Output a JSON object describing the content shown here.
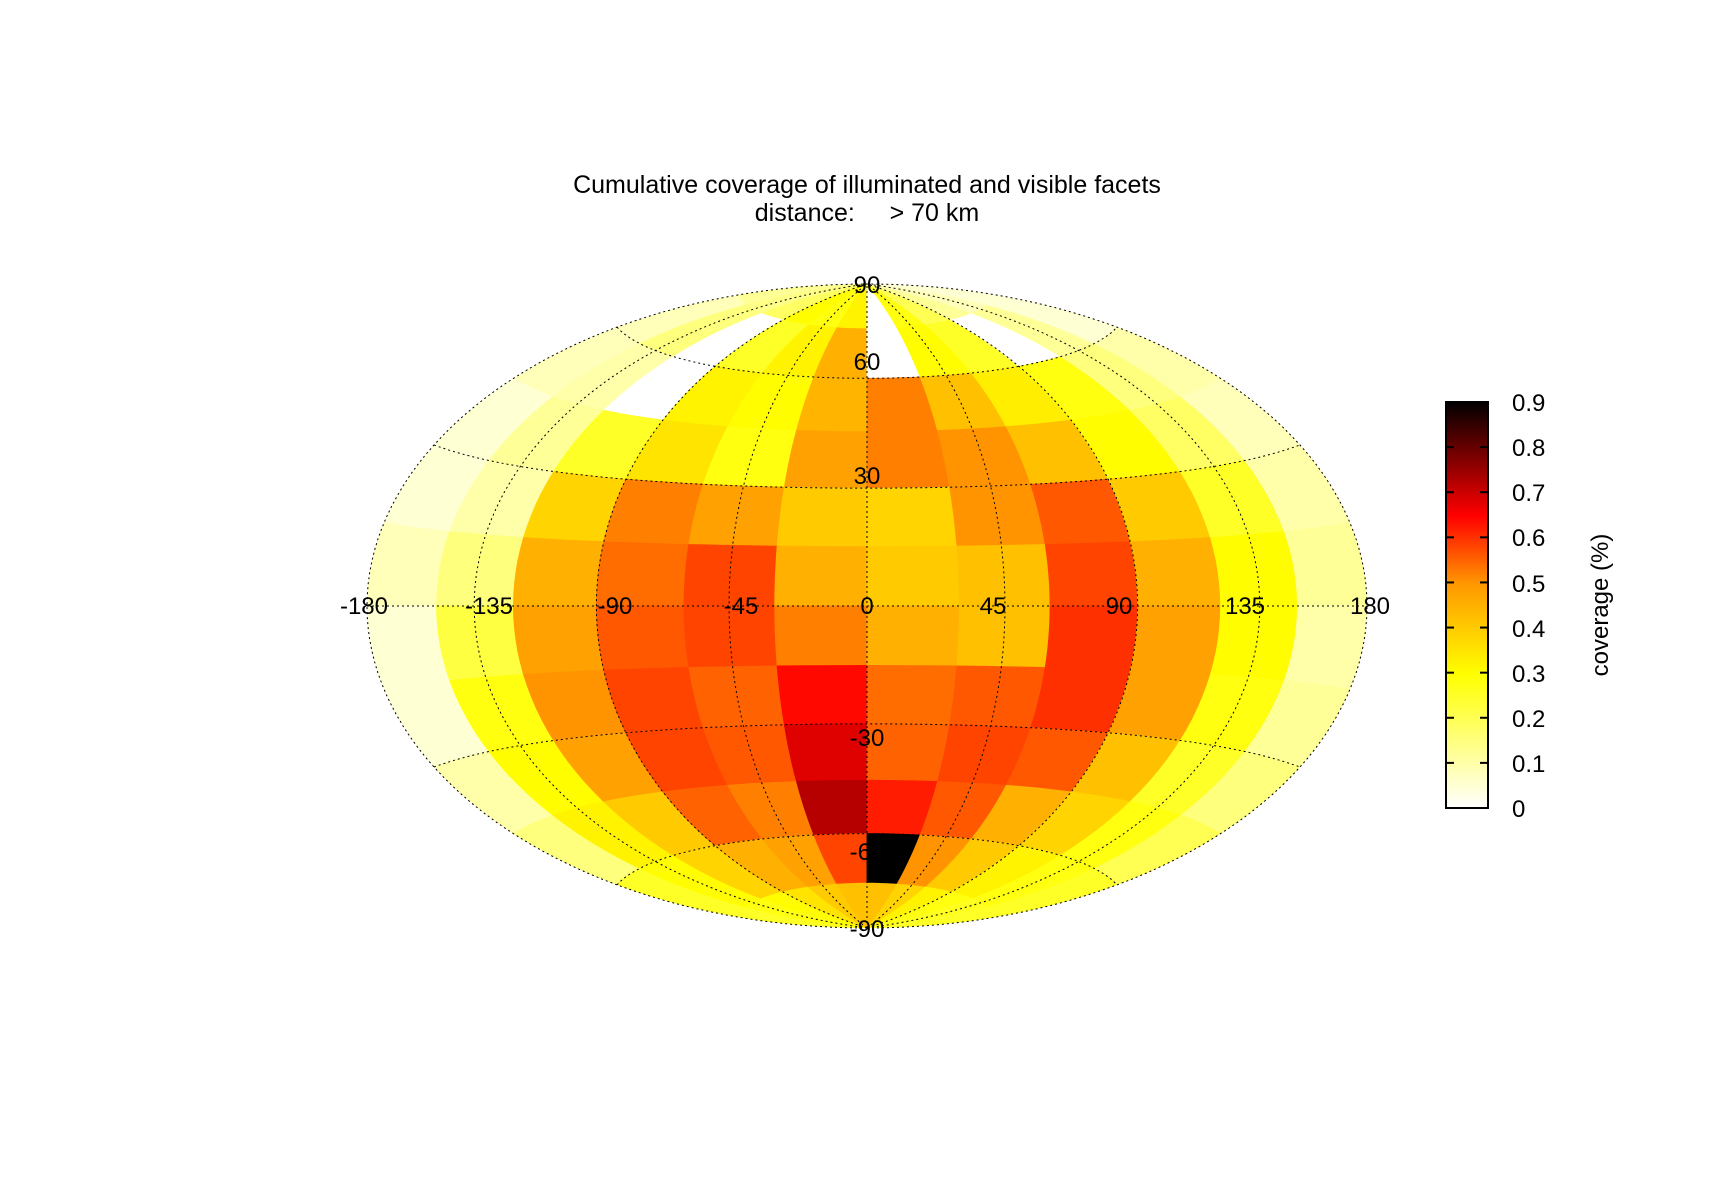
{
  "chart_data": {
    "type": "heatmap",
    "projection": "Hammer-Aitoff (elliptical, longitude/latitude)",
    "title_line1": "Cumulative coverage of illuminated and visible facets",
    "title_line2": "distance:     > 70 km",
    "lon_ticks": [
      "-180",
      "-135",
      "-90",
      "-45",
      "0",
      "45",
      "90",
      "135",
      "180"
    ],
    "lat_ticks": [
      "90",
      "60",
      "30",
      "-30",
      "-60",
      "-90"
    ],
    "grid": true,
    "colorbar": {
      "label": "coverage (%)",
      "range": [
        0,
        0.9
      ],
      "ticks": [
        "0",
        "0.1",
        "0.2",
        "0.3",
        "0.4",
        "0.5",
        "0.6",
        "0.7",
        "0.8",
        "0.9"
      ],
      "colormap": "hot (white → yellow → orange → red → black)",
      "placement": "right"
    },
    "coverage_grid": {
      "lon_bin_centers_deg": [
        -165,
        -135,
        -105,
        -75,
        -45,
        -15,
        15,
        45,
        75,
        105,
        135,
        165
      ],
      "lat_bin_centers_deg": [
        82.5,
        67.5,
        52.5,
        37.5,
        22.5,
        7.5,
        -7.5,
        -22.5,
        -37.5,
        -52.5,
        -67.5,
        -82.5
      ],
      "values": [
        [
          0.12,
          0.14,
          0.18,
          0.3,
          0.28,
          0.32,
          0.0,
          0.28,
          0.2,
          0.12,
          0.08,
          0.05
        ],
        [
          0.08,
          0.15,
          0.0,
          0.25,
          0.32,
          0.45,
          0.0,
          0.3,
          0.25,
          0.0,
          0.12,
          0.05
        ],
        [
          0.08,
          0.1,
          0.0,
          0.32,
          0.3,
          0.44,
          0.52,
          0.42,
          0.33,
          0.28,
          0.15,
          0.1
        ],
        [
          0.05,
          0.12,
          0.25,
          0.35,
          0.28,
          0.48,
          0.52,
          0.5,
          0.42,
          0.3,
          0.18,
          0.08
        ],
        [
          0.05,
          0.1,
          0.38,
          0.52,
          0.48,
          0.4,
          0.38,
          0.5,
          0.56,
          0.4,
          0.25,
          0.1
        ],
        [
          0.08,
          0.15,
          0.45,
          0.54,
          0.58,
          0.45,
          0.4,
          0.42,
          0.58,
          0.45,
          0.3,
          0.12
        ],
        [
          0.05,
          0.22,
          0.48,
          0.56,
          0.58,
          0.52,
          0.45,
          0.42,
          0.6,
          0.48,
          0.3,
          0.1
        ],
        [
          0.05,
          0.28,
          0.5,
          0.58,
          0.55,
          0.64,
          0.54,
          0.56,
          0.6,
          0.48,
          0.28,
          0.12
        ],
        [
          0.1,
          0.3,
          0.48,
          0.58,
          0.56,
          0.68,
          0.55,
          0.58,
          0.56,
          0.42,
          0.25,
          0.15
        ],
        [
          0.15,
          0.32,
          0.4,
          0.55,
          0.52,
          0.72,
          0.62,
          0.56,
          0.45,
          0.38,
          0.28,
          0.2
        ],
        [
          0.25,
          0.3,
          0.38,
          0.45,
          0.48,
          0.58,
          0.9,
          0.5,
          0.4,
          0.32,
          0.28,
          0.25
        ],
        [
          0.25,
          0.28,
          0.3,
          0.35,
          0.4,
          0.42,
          0.42,
          0.38,
          0.32,
          0.28,
          0.26,
          0.25
        ]
      ]
    }
  }
}
